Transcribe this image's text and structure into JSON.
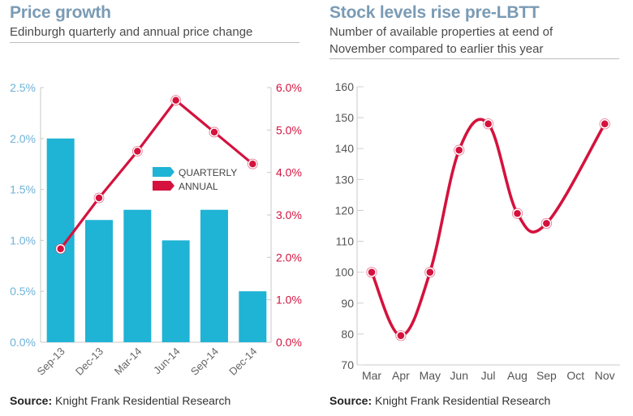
{
  "left": {
    "title": "Price growth",
    "subtitle": "Edinburgh quarterly and annual price change",
    "source_label": "Source:",
    "source_text": "Knight Frank Residential Research"
  },
  "right": {
    "title": "Stock levels rise pre-LBTT",
    "subtitle_line1": "Number of available properties at eend of",
    "subtitle_line2": "November compared to earlier this year",
    "source_label": "Source:",
    "source_text": "Knight Frank Residential Research"
  },
  "colors": {
    "quarterly": "#1fb3d5",
    "annual": "#d4123d",
    "left_axis_text": "#6fb2d9",
    "right_axis_text": "#d4123d",
    "axis_line": "#c8c8c8",
    "title": "#7a9bb5"
  },
  "chart_data": [
    {
      "type": "bar",
      "title": "Price growth",
      "subtitle": "Edinburgh quarterly and annual price change",
      "categories": [
        "Sep-13",
        "Dec-13",
        "Mar-14",
        "Jun-14",
        "Sep-14",
        "Dec-14"
      ],
      "series": [
        {
          "name": "QUARTERLY",
          "type": "bar",
          "axis": "left",
          "values": [
            2.0,
            1.2,
            1.3,
            1.0,
            1.3,
            0.5
          ]
        },
        {
          "name": "ANNUAL",
          "type": "line",
          "axis": "right",
          "values": [
            2.2,
            3.4,
            4.5,
            5.7,
            4.95,
            4.2
          ]
        }
      ],
      "y_left": {
        "range": [
          0,
          2.5
        ],
        "ticks": [
          "0.0%",
          "0.5%",
          "1.0%",
          "1.5%",
          "2.0%",
          "2.5%"
        ]
      },
      "y_right": {
        "range": [
          0,
          6
        ],
        "ticks": [
          "0.0%",
          "1.0%",
          "2.0%",
          "3.0%",
          "4.0%",
          "5.0%",
          "6.0%"
        ]
      },
      "legend": {
        "position": "center-right",
        "entries": [
          "QUARTERLY",
          "ANNUAL"
        ]
      },
      "grid": false,
      "xlabel": "",
      "ylabel": ""
    },
    {
      "type": "line",
      "title": "Stock levels rise pre-LBTT",
      "subtitle": "Number of available properties at eend of November compared to earlier this year",
      "categories": [
        "Mar",
        "Apr",
        "May",
        "Jun",
        "Jul",
        "Aug",
        "Sep",
        "Oct",
        "Nov"
      ],
      "series": [
        {
          "name": "Available properties",
          "values": [
            100,
            79.5,
            100,
            139.5,
            148,
            119,
            115.8,
            null,
            148
          ]
        }
      ],
      "ylim": [
        70,
        160
      ],
      "y_ticks": [
        "70",
        "80",
        "90",
        "100",
        "110",
        "120",
        "130",
        "140",
        "150",
        "160"
      ],
      "smooth": true,
      "grid": false,
      "xlabel": "",
      "ylabel": ""
    }
  ]
}
